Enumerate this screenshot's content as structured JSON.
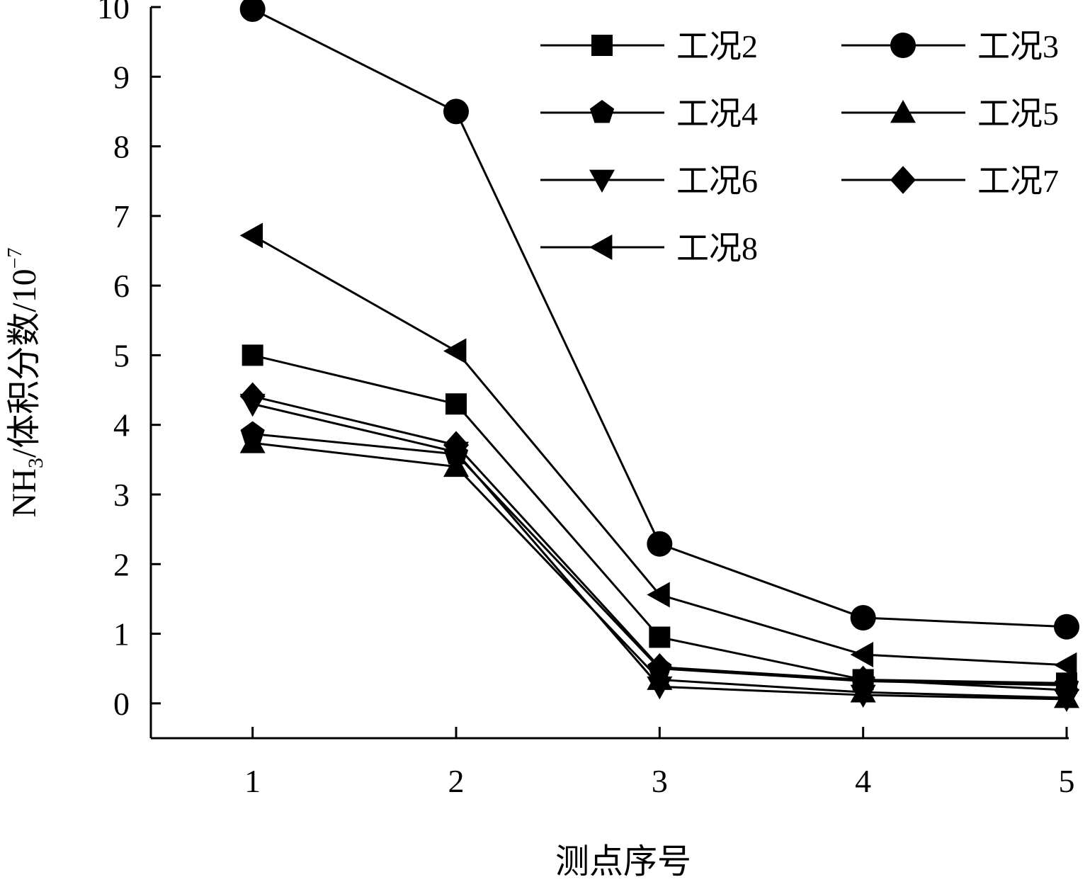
{
  "chart_data": {
    "type": "line",
    "title": "",
    "xlabel": "测点序号",
    "ylabel": {
      "prefix": "NH",
      "sub": "3",
      "mid": "/体积分数/10",
      "sup": "−7"
    },
    "x": [
      1,
      2,
      3,
      4,
      5
    ],
    "xlim": [
      0.5,
      5
    ],
    "ylim": [
      -0.5,
      10
    ],
    "xticks": [
      "1",
      "2",
      "3",
      "4",
      "5"
    ],
    "yticks": [
      "0",
      "1",
      "2",
      "3",
      "4",
      "5",
      "6",
      "7",
      "8",
      "9",
      "10"
    ],
    "grid": false,
    "legend_position": "top-right",
    "series": [
      {
        "name": "工况2",
        "marker": "square",
        "values": [
          5.0,
          4.3,
          0.95,
          0.34,
          0.29
        ]
      },
      {
        "name": "工况3",
        "marker": "circle",
        "values": [
          9.97,
          8.5,
          2.29,
          1.23,
          1.1
        ]
      },
      {
        "name": "工况4",
        "marker": "pentagon",
        "values": [
          3.87,
          3.58,
          0.5,
          0.32,
          0.26
        ]
      },
      {
        "name": "工况5",
        "marker": "triangle-up",
        "values": [
          3.74,
          3.4,
          0.34,
          0.16,
          0.08
        ]
      },
      {
        "name": "工况6",
        "marker": "triangle-down",
        "values": [
          4.3,
          3.61,
          0.24,
          0.12,
          0.06
        ]
      },
      {
        "name": "工况7",
        "marker": "diamond",
        "values": [
          4.41,
          3.71,
          0.52,
          0.34,
          0.19
        ]
      },
      {
        "name": "工况8",
        "marker": "triangle-left",
        "values": [
          6.72,
          5.06,
          1.56,
          0.7,
          0.55
        ]
      }
    ]
  }
}
